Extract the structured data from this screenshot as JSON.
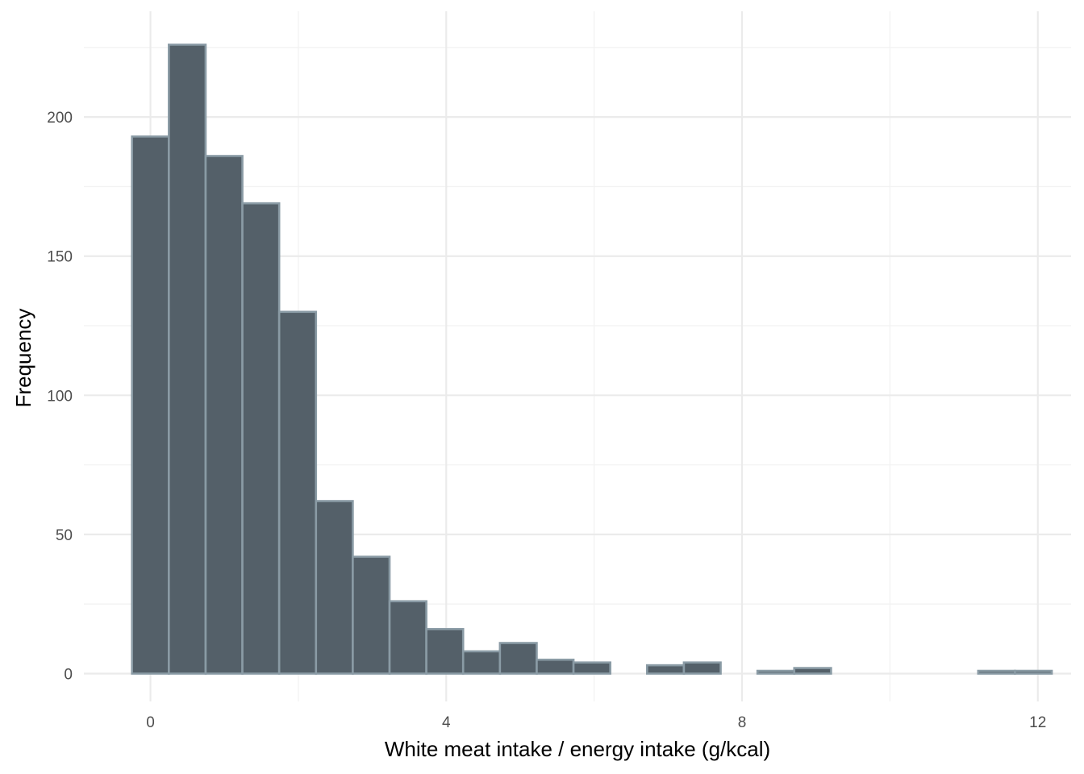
{
  "chart_data": {
    "type": "bar",
    "title": "",
    "xlabel": "White meat intake / energy intake (g/kcal)",
    "ylabel": "Frequency",
    "xlim": [
      -0.9,
      12.45
    ],
    "ylim": [
      -10,
      238
    ],
    "x_ticks": [
      {
        "value": 0,
        "label": "0"
      },
      {
        "value": 4,
        "label": "4"
      },
      {
        "value": 8,
        "label": "8"
      },
      {
        "value": 12,
        "label": "12"
      }
    ],
    "y_ticks": [
      {
        "value": 0,
        "label": "0"
      },
      {
        "value": 50,
        "label": "50"
      },
      {
        "value": 100,
        "label": "100"
      },
      {
        "value": 150,
        "label": "150"
      },
      {
        "value": 200,
        "label": "200"
      }
    ],
    "x_minor_gridlines": [
      2,
      6,
      10
    ],
    "y_minor_gridlines": [
      25,
      75,
      125,
      175,
      225
    ],
    "bin_width": 0.4975,
    "bins": [
      {
        "x": 0.0,
        "count": 193
      },
      {
        "x": 0.4975,
        "count": 226
      },
      {
        "x": 0.995,
        "count": 186
      },
      {
        "x": 1.4925,
        "count": 169
      },
      {
        "x": 1.99,
        "count": 130
      },
      {
        "x": 2.4875,
        "count": 62
      },
      {
        "x": 2.985,
        "count": 42
      },
      {
        "x": 3.4825,
        "count": 26
      },
      {
        "x": 3.98,
        "count": 16
      },
      {
        "x": 4.4775,
        "count": 8
      },
      {
        "x": 4.975,
        "count": 11
      },
      {
        "x": 5.4725,
        "count": 5
      },
      {
        "x": 5.97,
        "count": 4
      },
      {
        "x": 6.4675,
        "count": 0
      },
      {
        "x": 6.965,
        "count": 3
      },
      {
        "x": 7.4625,
        "count": 4
      },
      {
        "x": 7.96,
        "count": 0
      },
      {
        "x": 8.4575,
        "count": 1
      },
      {
        "x": 8.955,
        "count": 2
      },
      {
        "x": 9.4525,
        "count": 0
      },
      {
        "x": 9.95,
        "count": 0
      },
      {
        "x": 10.4475,
        "count": 0
      },
      {
        "x": 10.945,
        "count": 0
      },
      {
        "x": 11.4425,
        "count": 1
      },
      {
        "x": 11.94,
        "count": 1
      }
    ],
    "grid": true,
    "legend": "none",
    "colors": {
      "bar_fill": "#546069",
      "bar_outline": "#8a9ba5",
      "grid_major": "#ebebeb",
      "grid_minor": "#f2f2f2",
      "tick_text": "#4d4d4d",
      "title_text": "#000000"
    }
  }
}
